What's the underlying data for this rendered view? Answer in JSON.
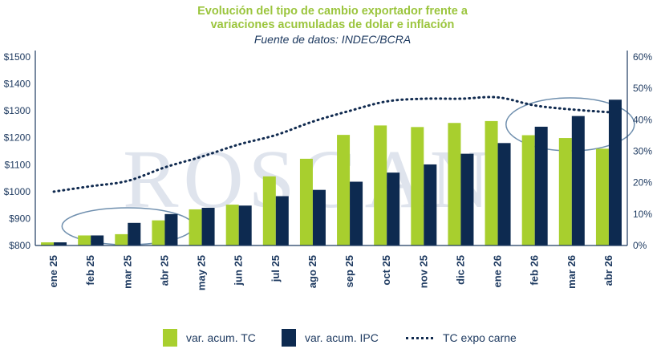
{
  "title": {
    "line1": "Evolución del tipo de cambio exportador frente a",
    "line2": "variaciones acumuladas de dolar e inflación",
    "subtitle": "Fuente de datos: INDEC/BCRA"
  },
  "colors": {
    "tc_bar": "#a8cf2e",
    "ipc_bar": "#0d2a50",
    "line": "#102a4f",
    "title": "#9bc53d",
    "axis_text": "#1f3b61",
    "ellipse": "#6f8fae",
    "watermark": "#b9c4d8"
  },
  "watermark": "ROSGAN",
  "legend": {
    "tc": "var. acum. TC",
    "ipc": "var. acum. IPC",
    "line": "TC expo carne"
  },
  "chart_data": {
    "type": "bar",
    "categories": [
      "ene 25",
      "feb 25",
      "mar 25",
      "abr 25",
      "may 25",
      "jun 25",
      "jul 25",
      "ago 25",
      "sep 25",
      "oct 25",
      "nov 25",
      "dic 25",
      "ene 26",
      "feb 26",
      "mar 26",
      "abr 26"
    ],
    "series": [
      {
        "name": "var. acum. TC",
        "axis": "right",
        "type": "bar",
        "values": [
          1.0,
          3.2,
          3.6,
          8.0,
          11.5,
          13.0,
          22.0,
          27.6,
          35.2,
          38.2,
          37.7,
          39.0,
          39.6,
          35.1,
          34.2,
          30.8
        ]
      },
      {
        "name": "var. acum. IPC",
        "axis": "right",
        "type": "bar",
        "values": [
          1.0,
          3.2,
          7.2,
          10.0,
          12.0,
          12.7,
          15.7,
          17.7,
          20.3,
          23.2,
          25.8,
          29.2,
          32.6,
          37.8,
          41.2,
          46.4
        ]
      },
      {
        "name": "TC expo carne",
        "axis": "left",
        "type": "line",
        "values": [
          1000,
          1020,
          1040,
          1090,
          1130,
          1175,
          1210,
          1260,
          1300,
          1335,
          1345,
          1345,
          1350,
          1320,
          1305,
          1295
        ]
      }
    ],
    "y_left": {
      "ticks": [
        "$800",
        "$900",
        "$1000",
        "$1100",
        "$1200",
        "$1300",
        "$1400",
        "$1500"
      ],
      "range": [
        800,
        1500
      ]
    },
    "y_right": {
      "ticks": [
        "0%",
        "10%",
        "20%",
        "30%",
        "40%",
        "50%",
        "60%"
      ],
      "range": [
        0,
        60
      ]
    },
    "grid": false,
    "legend_position": "bottom"
  }
}
